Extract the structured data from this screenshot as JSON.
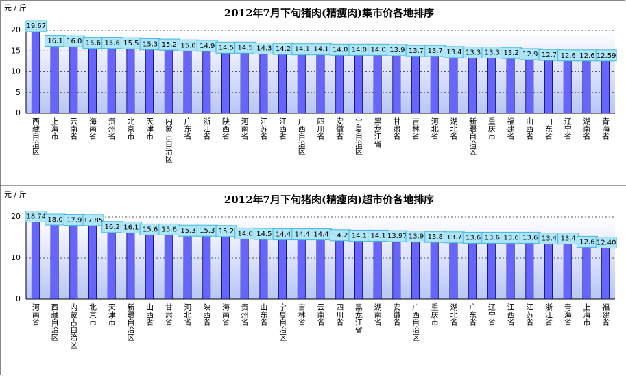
{
  "chart_data": [
    {
      "type": "bar",
      "title": "2012年7月下旬猪肉(精瘦肉)集市价各地排序",
      "y_label": "元 / 斤",
      "categories": [
        "西藏自治区",
        "上海市",
        "云南省",
        "海南省",
        "贵州省",
        "北京市",
        "天津市",
        "内蒙古自治区",
        "广东省",
        "浙江省",
        "陕西省",
        "河南省",
        "江苏省",
        "江西省",
        "广西自治区",
        "四川省",
        "安徽省",
        "宁夏自治区",
        "黑龙江省",
        "甘肃省",
        "吉林省",
        "河北省",
        "湖北省",
        "新疆自治区",
        "重庆市",
        "福建省",
        "山西省",
        "山东省",
        "辽宁省",
        "湖南省",
        "青海省"
      ],
      "values": [
        19.67,
        16.1,
        16.0,
        15.6,
        15.6,
        15.5,
        15.3,
        15.2,
        15.0,
        14.9,
        14.5,
        14.5,
        14.3,
        14.2,
        14.1,
        14.1,
        14.0,
        14.0,
        14.0,
        13.9,
        13.7,
        13.7,
        13.4,
        13.3,
        13.3,
        13.2,
        12.9,
        12.7,
        12.6,
        12.6,
        12.59
      ],
      "value_labels": [
        "19.67",
        "16.1",
        "16.0",
        "15.6",
        "15.6",
        "15.5",
        "15.3",
        "15.2",
        "15.0",
        "14.9",
        "14.5",
        "14.5",
        "14.3",
        "14.2",
        "14.1",
        "14.1",
        "14.0",
        "14.0",
        "14.0",
        "13.9",
        "13.7",
        "13.7",
        "13.4",
        "13.3",
        "13.3",
        "13.2",
        "12.9",
        "12.7",
        "12.6",
        "12.6",
        "12.59"
      ],
      "color": "#6666ff",
      "ylim": [
        0,
        20
      ],
      "yticks": [
        0,
        5,
        10,
        15,
        20
      ],
      "grid": true
    },
    {
      "type": "bar",
      "title": "2012年7月下旬猪肉(精瘦肉)超市价各地排序",
      "y_label": "元 / 斤",
      "categories": [
        "河南省",
        "西藏自治区",
        "内蒙古自治区",
        "北京市",
        "天津市",
        "新疆自治区",
        "山西省",
        "甘肃省",
        "河北省",
        "陕西省",
        "海南省",
        "贵州省",
        "山东省",
        "宁夏自治区",
        "吉林省",
        "云南省",
        "四川省",
        "黑龙江省",
        "湖南省",
        "安徽省",
        "广西自治区",
        "重庆市",
        "湖北省",
        "广东省",
        "辽宁省",
        "江西省",
        "江苏省",
        "浙江省",
        "青海省",
        "上海市",
        "福建省"
      ],
      "values": [
        18.74,
        18.0,
        17.9,
        17.85,
        16.2,
        16.1,
        15.6,
        15.6,
        15.3,
        15.3,
        15.2,
        14.6,
        14.5,
        14.4,
        14.4,
        14.4,
        14.2,
        14.1,
        14.1,
        13.97,
        13.9,
        13.8,
        13.7,
        13.6,
        13.6,
        13.6,
        13.6,
        13.4,
        13.4,
        12.6,
        12.4
      ],
      "value_labels": [
        "18.74",
        "18.0",
        "17.9",
        "17.85",
        "16.2",
        "16.1",
        "15.6",
        "15.6",
        "15.3",
        "15.3",
        "15.2",
        "14.6",
        "14.5",
        "14.4",
        "14.4",
        "14.4",
        "14.2",
        "14.1",
        "14.1",
        "13.97",
        "13.9",
        "13.8",
        "13.7",
        "13.6",
        "13.6",
        "13.6",
        "13.6",
        "13.4",
        "13.4",
        "12.6",
        "12.40"
      ],
      "color": "#6666ff",
      "ylim": [
        0,
        20
      ],
      "yticks": [
        0,
        10,
        20
      ],
      "grid": true
    }
  ]
}
